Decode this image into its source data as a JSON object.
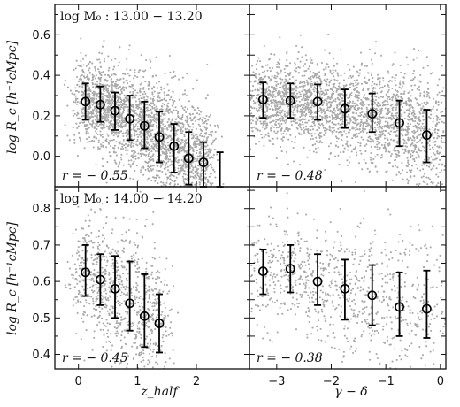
{
  "figure": {
    "xlabels": [
      "z_half",
      "γ − δ"
    ],
    "ylabel": "log R_c [h⁻¹cMpc]"
  },
  "chart_data": [
    {
      "type": "scatter",
      "panel": "top-left",
      "annotation": "log M₀ : 13.00 − 13.20",
      "r_label": "r = − 0.55",
      "xlim": [
        -0.4,
        2.9
      ],
      "ylim": [
        -0.15,
        0.75
      ],
      "xticks": [
        0,
        1,
        2
      ],
      "yticks": [
        0.0,
        0.1,
        0.2,
        0.3,
        0.4,
        0.5,
        0.6,
        0.7
      ],
      "ytick_labels": [
        "0.0",
        "",
        "0.2",
        "",
        "0.4",
        "",
        "0.6",
        ""
      ],
      "points": [
        {
          "x": 0.12,
          "y": 0.27,
          "lo": 0.18,
          "hi": 0.36
        },
        {
          "x": 0.37,
          "y": 0.255,
          "lo": 0.17,
          "hi": 0.345
        },
        {
          "x": 0.62,
          "y": 0.225,
          "lo": 0.13,
          "hi": 0.315
        },
        {
          "x": 0.87,
          "y": 0.185,
          "lo": 0.08,
          "hi": 0.3
        },
        {
          "x": 1.12,
          "y": 0.15,
          "lo": 0.04,
          "hi": 0.27
        },
        {
          "x": 1.37,
          "y": 0.095,
          "lo": -0.03,
          "hi": 0.22
        },
        {
          "x": 1.62,
          "y": 0.05,
          "lo": -0.08,
          "hi": 0.16
        },
        {
          "x": 1.87,
          "y": -0.01,
          "lo": -0.14,
          "hi": 0.12
        },
        {
          "x": 2.12,
          "y": -0.03,
          "lo": -0.15,
          "hi": 0.07
        },
        {
          "x": 2.4,
          "y": null,
          "lo": -0.15,
          "hi": 0.02
        }
      ],
      "cloud_color": "#a9a9a9"
    },
    {
      "type": "scatter",
      "panel": "top-right",
      "annotation": "",
      "r_label": "r = − 0.48",
      "xlim": [
        -3.5,
        0.1
      ],
      "ylim": [
        -0.15,
        0.75
      ],
      "xticks": [
        -3,
        -2,
        -1,
        0
      ],
      "yticks": [
        0.0,
        0.1,
        0.2,
        0.3,
        0.4,
        0.5,
        0.6,
        0.7
      ],
      "points": [
        {
          "x": -3.25,
          "y": 0.28,
          "lo": 0.19,
          "hi": 0.365
        },
        {
          "x": -2.75,
          "y": 0.275,
          "lo": 0.19,
          "hi": 0.36
        },
        {
          "x": -2.25,
          "y": 0.27,
          "lo": 0.18,
          "hi": 0.355
        },
        {
          "x": -1.75,
          "y": 0.235,
          "lo": 0.14,
          "hi": 0.33
        },
        {
          "x": -1.25,
          "y": 0.21,
          "lo": 0.12,
          "hi": 0.31
        },
        {
          "x": -0.75,
          "y": 0.165,
          "lo": 0.05,
          "hi": 0.275
        },
        {
          "x": -0.25,
          "y": 0.105,
          "lo": -0.03,
          "hi": 0.23
        }
      ],
      "cloud_color": "#a9a9a9"
    },
    {
      "type": "scatter",
      "panel": "bottom-left",
      "annotation": "log M₀ : 14.00 − 14.20",
      "r_label": "r = − 0.45",
      "xlim": [
        -0.4,
        2.9
      ],
      "ylim": [
        0.36,
        0.86
      ],
      "xticks": [
        0,
        1,
        2
      ],
      "xtick_labels": [
        "0",
        "1",
        "2"
      ],
      "yticks": [
        0.4,
        0.45,
        0.5,
        0.55,
        0.6,
        0.65,
        0.7,
        0.75,
        0.8,
        0.85
      ],
      "ytick_labels": [
        "0.4",
        "",
        "0.5",
        "",
        "0.6",
        "",
        "0.7",
        "",
        "0.8",
        ""
      ],
      "points": [
        {
          "x": 0.12,
          "y": 0.625,
          "lo": 0.56,
          "hi": 0.7
        },
        {
          "x": 0.37,
          "y": 0.605,
          "lo": 0.535,
          "hi": 0.675
        },
        {
          "x": 0.62,
          "y": 0.58,
          "lo": 0.5,
          "hi": 0.67
        },
        {
          "x": 0.87,
          "y": 0.54,
          "lo": 0.465,
          "hi": 0.655
        },
        {
          "x": 1.12,
          "y": 0.505,
          "lo": 0.42,
          "hi": 0.62
        },
        {
          "x": 1.37,
          "y": 0.485,
          "lo": 0.405,
          "hi": 0.565
        }
      ],
      "cloud_color": "#a9a9a9"
    },
    {
      "type": "scatter",
      "panel": "bottom-right",
      "annotation": "",
      "r_label": "r = − 0.38",
      "xlim": [
        -3.5,
        0.1
      ],
      "ylim": [
        0.36,
        0.86
      ],
      "xticks": [
        -3,
        -2,
        -1,
        0
      ],
      "xtick_labels": [
        "−3",
        "−2",
        "−1",
        "0"
      ],
      "yticks": [
        0.4,
        0.45,
        0.5,
        0.55,
        0.6,
        0.65,
        0.7,
        0.75,
        0.8,
        0.85
      ],
      "points": [
        {
          "x": -3.25,
          "y": 0.628,
          "lo": 0.565,
          "hi": 0.688
        },
        {
          "x": -2.75,
          "y": 0.635,
          "lo": 0.57,
          "hi": 0.7
        },
        {
          "x": -2.25,
          "y": 0.6,
          "lo": 0.535,
          "hi": 0.675
        },
        {
          "x": -1.75,
          "y": 0.58,
          "lo": 0.495,
          "hi": 0.66
        },
        {
          "x": -1.25,
          "y": 0.562,
          "lo": 0.48,
          "hi": 0.645
        },
        {
          "x": -0.75,
          "y": 0.53,
          "lo": 0.45,
          "hi": 0.625
        },
        {
          "x": -0.25,
          "y": 0.525,
          "lo": 0.445,
          "hi": 0.63
        }
      ],
      "cloud_color": "#a9a9a9"
    }
  ]
}
